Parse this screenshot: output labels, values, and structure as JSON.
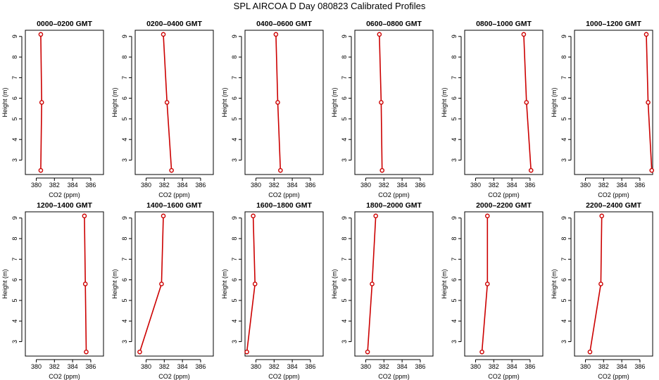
{
  "figure": {
    "title": "SPL AIRCOA D  Day 080823  Calibrated Profiles"
  },
  "chart_data": [
    {
      "type": "line",
      "title": "0000–0200 GMT",
      "xlabel": "CO2 (ppm)",
      "ylabel": "Height (m)",
      "xlim": [
        378.8,
        387.4
      ],
      "ylim": [
        2.3,
        9.3
      ],
      "xticks": [
        380,
        382,
        384,
        386
      ],
      "yticks": [
        3,
        4,
        5,
        6,
        7,
        8,
        9
      ],
      "series": [
        {
          "color": "#cc0000",
          "points": [
            {
              "x": 380.5,
              "y": 9.1
            },
            {
              "x": 380.6,
              "y": 5.8
            },
            {
              "x": 380.5,
              "y": 2.5
            }
          ]
        }
      ]
    },
    {
      "type": "line",
      "title": "0200–0400 GMT",
      "xlabel": "CO2 (ppm)",
      "ylabel": "Height (m)",
      "xlim": [
        378.8,
        387.4
      ],
      "ylim": [
        2.3,
        9.3
      ],
      "xticks": [
        380,
        382,
        384,
        386
      ],
      "yticks": [
        3,
        4,
        5,
        6,
        7,
        8,
        9
      ],
      "series": [
        {
          "color": "#cc0000",
          "points": [
            {
              "x": 381.9,
              "y": 9.1
            },
            {
              "x": 382.3,
              "y": 5.8
            },
            {
              "x": 382.8,
              "y": 2.5
            }
          ]
        }
      ]
    },
    {
      "type": "line",
      "title": "0400–0600 GMT",
      "xlabel": "CO2 (ppm)",
      "ylabel": "Height (m)",
      "xlim": [
        378.8,
        387.4
      ],
      "ylim": [
        2.3,
        9.3
      ],
      "xticks": [
        380,
        382,
        384,
        386
      ],
      "yticks": [
        3,
        4,
        5,
        6,
        7,
        8,
        9
      ],
      "series": [
        {
          "color": "#cc0000",
          "points": [
            {
              "x": 382.2,
              "y": 9.1
            },
            {
              "x": 382.4,
              "y": 5.8
            },
            {
              "x": 382.7,
              "y": 2.5
            }
          ]
        }
      ]
    },
    {
      "type": "line",
      "title": "0600–0800 GMT",
      "xlabel": "CO2 (ppm)",
      "ylabel": "Height (m)",
      "xlim": [
        378.8,
        387.4
      ],
      "ylim": [
        2.3,
        9.3
      ],
      "xticks": [
        380,
        382,
        384,
        386
      ],
      "yticks": [
        3,
        4,
        5,
        6,
        7,
        8,
        9
      ],
      "series": [
        {
          "color": "#cc0000",
          "points": [
            {
              "x": 381.5,
              "y": 9.1
            },
            {
              "x": 381.7,
              "y": 5.8
            },
            {
              "x": 381.8,
              "y": 2.5
            }
          ]
        }
      ]
    },
    {
      "type": "line",
      "title": "0800–1000 GMT",
      "xlabel": "CO2 (ppm)",
      "ylabel": "Height (m)",
      "xlim": [
        378.8,
        387.4
      ],
      "ylim": [
        2.3,
        9.3
      ],
      "xticks": [
        380,
        382,
        384,
        386
      ],
      "yticks": [
        3,
        4,
        5,
        6,
        7,
        8,
        9
      ],
      "series": [
        {
          "color": "#cc0000",
          "points": [
            {
              "x": 385.3,
              "y": 9.1
            },
            {
              "x": 385.6,
              "y": 5.8
            },
            {
              "x": 386.1,
              "y": 2.5
            }
          ]
        }
      ]
    },
    {
      "type": "line",
      "title": "1000–1200 GMT",
      "xlabel": "CO2 (ppm)",
      "ylabel": "Height (m)",
      "xlim": [
        378.8,
        387.4
      ],
      "ylim": [
        2.3,
        9.3
      ],
      "xticks": [
        380,
        382,
        384,
        386
      ],
      "yticks": [
        3,
        4,
        5,
        6,
        7,
        8,
        9
      ],
      "series": [
        {
          "color": "#cc0000",
          "points": [
            {
              "x": 386.7,
              "y": 9.1
            },
            {
              "x": 386.9,
              "y": 5.8
            },
            {
              "x": 387.3,
              "y": 2.5
            }
          ]
        }
      ]
    },
    {
      "type": "line",
      "title": "1200–1400 GMT",
      "xlabel": "CO2 (ppm)",
      "ylabel": "Height (m)",
      "xlim": [
        378.8,
        387.4
      ],
      "ylim": [
        2.3,
        9.3
      ],
      "xticks": [
        380,
        382,
        384,
        386
      ],
      "yticks": [
        3,
        4,
        5,
        6,
        7,
        8,
        9
      ],
      "series": [
        {
          "color": "#cc0000",
          "points": [
            {
              "x": 385.3,
              "y": 9.1
            },
            {
              "x": 385.4,
              "y": 5.8
            },
            {
              "x": 385.5,
              "y": 2.5
            }
          ]
        }
      ]
    },
    {
      "type": "line",
      "title": "1400–1600 GMT",
      "xlabel": "CO2 (ppm)",
      "ylabel": "Height (m)",
      "xlim": [
        378.8,
        387.4
      ],
      "ylim": [
        2.3,
        9.3
      ],
      "xticks": [
        380,
        382,
        384,
        386
      ],
      "yticks": [
        3,
        4,
        5,
        6,
        7,
        8,
        9
      ],
      "series": [
        {
          "color": "#cc0000",
          "points": [
            {
              "x": 381.9,
              "y": 9.1
            },
            {
              "x": 381.7,
              "y": 5.8
            },
            {
              "x": 379.3,
              "y": 2.5
            }
          ]
        }
      ]
    },
    {
      "type": "line",
      "title": "1600–1800 GMT",
      "xlabel": "CO2 (ppm)",
      "ylabel": "Height (m)",
      "xlim": [
        378.8,
        387.4
      ],
      "ylim": [
        2.3,
        9.3
      ],
      "xticks": [
        380,
        382,
        384,
        386
      ],
      "yticks": [
        3,
        4,
        5,
        6,
        7,
        8,
        9
      ],
      "series": [
        {
          "color": "#cc0000",
          "points": [
            {
              "x": 379.7,
              "y": 9.1
            },
            {
              "x": 379.9,
              "y": 5.8
            },
            {
              "x": 379.0,
              "y": 2.5
            }
          ]
        }
      ]
    },
    {
      "type": "line",
      "title": "1800–2000 GMT",
      "xlabel": "CO2 (ppm)",
      "ylabel": "Height (m)",
      "xlim": [
        378.8,
        387.4
      ],
      "ylim": [
        2.3,
        9.3
      ],
      "xticks": [
        380,
        382,
        384,
        386
      ],
      "yticks": [
        3,
        4,
        5,
        6,
        7,
        8,
        9
      ],
      "series": [
        {
          "color": "#cc0000",
          "points": [
            {
              "x": 381.1,
              "y": 9.1
            },
            {
              "x": 380.7,
              "y": 5.8
            },
            {
              "x": 380.2,
              "y": 2.5
            }
          ]
        }
      ]
    },
    {
      "type": "line",
      "title": "2000–2200 GMT",
      "xlabel": "CO2 (ppm)",
      "ylabel": "Height (m)",
      "xlim": [
        378.8,
        387.4
      ],
      "ylim": [
        2.3,
        9.3
      ],
      "xticks": [
        380,
        382,
        384,
        386
      ],
      "yticks": [
        3,
        4,
        5,
        6,
        7,
        8,
        9
      ],
      "series": [
        {
          "color": "#cc0000",
          "points": [
            {
              "x": 381.3,
              "y": 9.1
            },
            {
              "x": 381.3,
              "y": 5.8
            },
            {
              "x": 380.7,
              "y": 2.5
            }
          ]
        }
      ]
    },
    {
      "type": "line",
      "title": "2200–2400 GMT",
      "xlabel": "CO2 (ppm)",
      "ylabel": "Height (m)",
      "xlim": [
        378.8,
        387.4
      ],
      "ylim": [
        2.3,
        9.3
      ],
      "xticks": [
        380,
        382,
        384,
        386
      ],
      "yticks": [
        3,
        4,
        5,
        6,
        7,
        8,
        9
      ],
      "series": [
        {
          "color": "#cc0000",
          "points": [
            {
              "x": 381.8,
              "y": 9.1
            },
            {
              "x": 381.7,
              "y": 5.8
            },
            {
              "x": 380.5,
              "y": 2.5
            }
          ]
        }
      ]
    }
  ]
}
